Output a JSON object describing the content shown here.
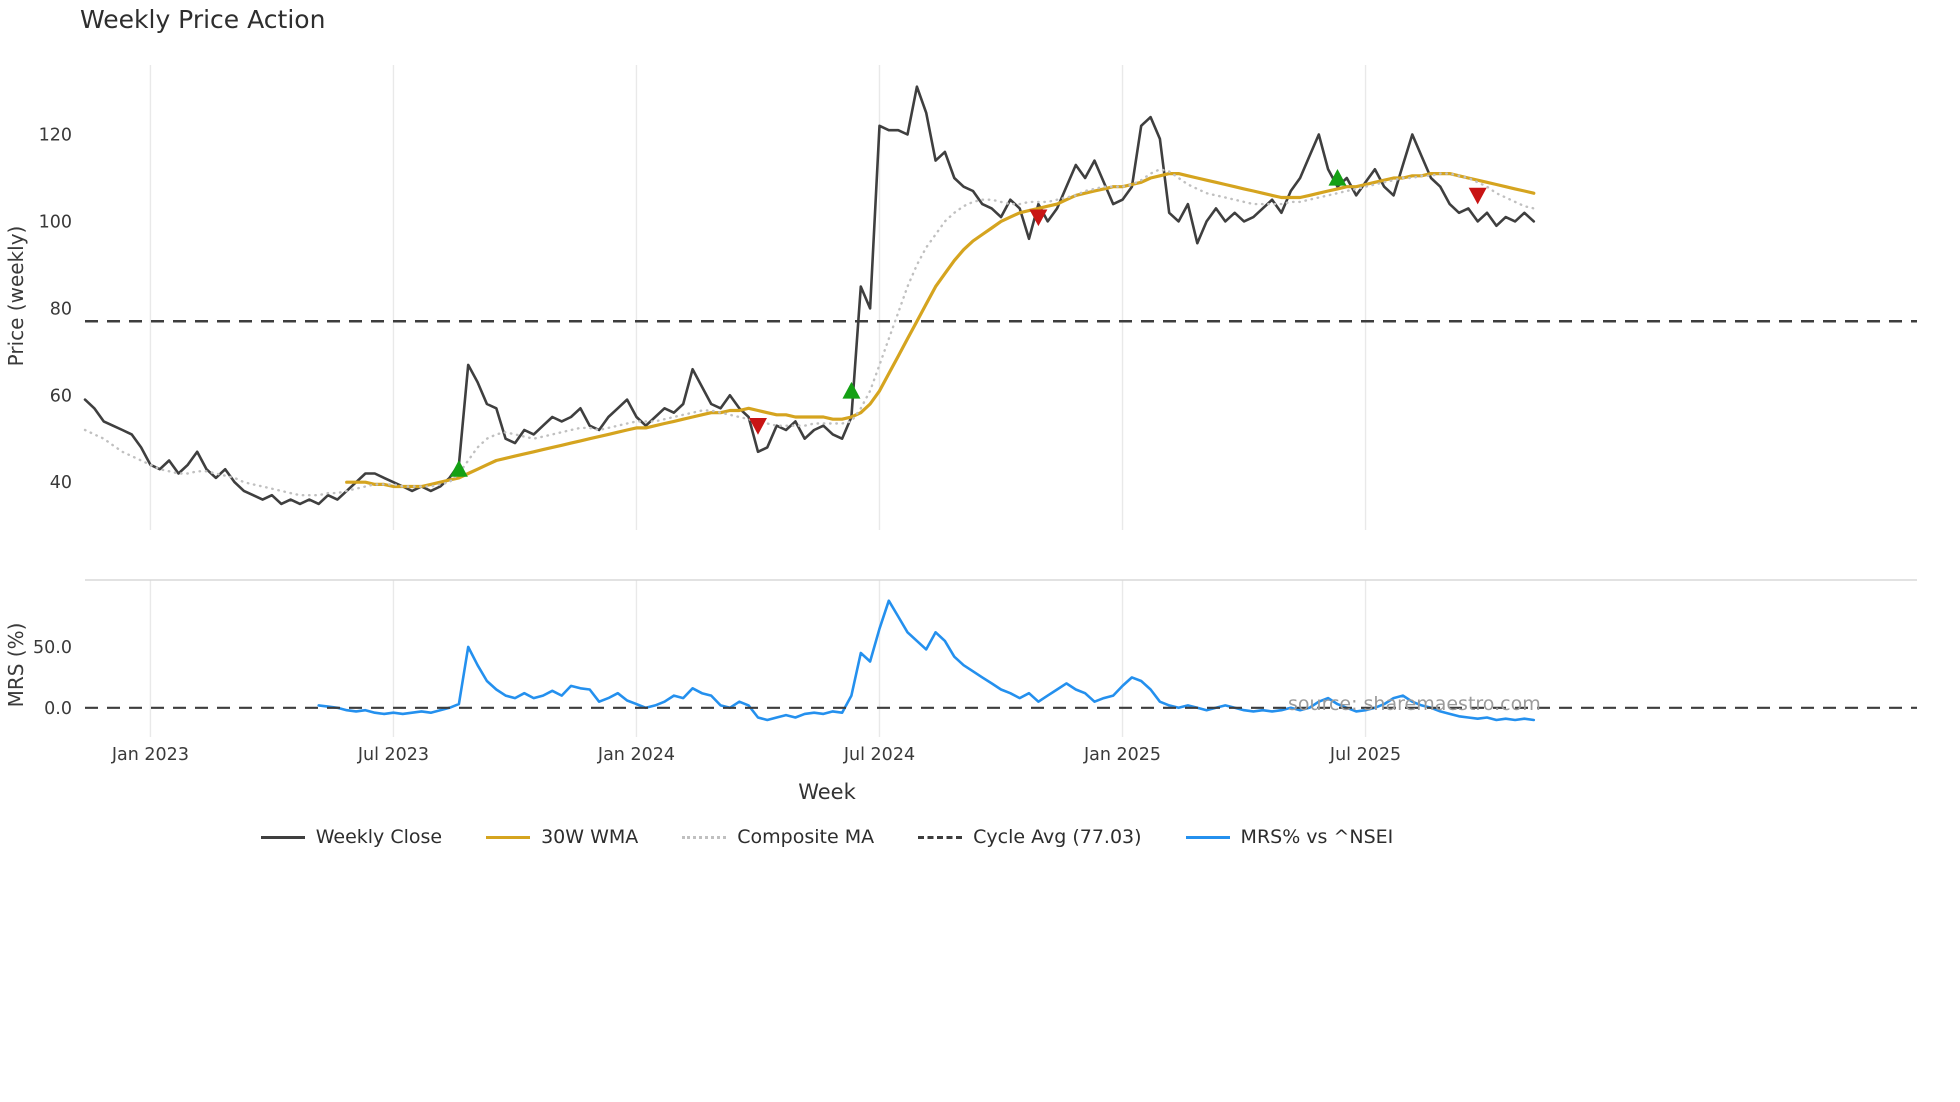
{
  "chart_data": {
    "type": "line",
    "title": "Weekly Price Action",
    "xlabel": "Week",
    "watermark": "source: sharemaestro.com",
    "x_unit": "week_index",
    "x_range": [
      0,
      196
    ],
    "x_ticks": [
      {
        "week": 7,
        "label": "Jan 2023"
      },
      {
        "week": 33,
        "label": "Jul 2023"
      },
      {
        "week": 59,
        "label": "Jan 2024"
      },
      {
        "week": 85,
        "label": "Jul 2024"
      },
      {
        "week": 111,
        "label": "Jan 2025"
      },
      {
        "week": 137,
        "label": "Jul 2025"
      }
    ],
    "panels": [
      {
        "name": "price",
        "ylabel": "Price (weekly)",
        "ylim": [
          29,
          136
        ],
        "grid": "vertical",
        "y_ticks": [
          {
            "value": 40,
            "label": "40"
          },
          {
            "value": 60,
            "label": "60"
          },
          {
            "value": 80,
            "label": "80"
          },
          {
            "value": 100,
            "label": "100"
          },
          {
            "value": 120,
            "label": "120"
          }
        ],
        "series": [
          {
            "name": "Weekly Close",
            "color": "#3f3f3f",
            "width": 2.6,
            "dash": "solid",
            "start_week": 0,
            "values": [
              59,
              57,
              54,
              53,
              52,
              51,
              48,
              44,
              43,
              45,
              42,
              44,
              47,
              43,
              41,
              43,
              40,
              38,
              37,
              36,
              37,
              35,
              36,
              35,
              36,
              35,
              37,
              36,
              38,
              40,
              42,
              42,
              41,
              40,
              39,
              38,
              39,
              38,
              39,
              41,
              44,
              67,
              63,
              58,
              57,
              50,
              49,
              52,
              51,
              53,
              55,
              54,
              55,
              57,
              53,
              52,
              55,
              57,
              59,
              55,
              53,
              55,
              57,
              56,
              58,
              66,
              62,
              58,
              57,
              60,
              57,
              55,
              47,
              48,
              53,
              52,
              54,
              50,
              52,
              53,
              51,
              50,
              55,
              85,
              80,
              122,
              121,
              121,
              120,
              131,
              125,
              114,
              116,
              110,
              108,
              107,
              104,
              103,
              101,
              105,
              103,
              96,
              104,
              100,
              103,
              108,
              113,
              110,
              114,
              109,
              104,
              105,
              108,
              122,
              124,
              119,
              102,
              100,
              104,
              95,
              100,
              103,
              100,
              102,
              100,
              101,
              103,
              105,
              102,
              107,
              110,
              115,
              120,
              112,
              108,
              110,
              106,
              109,
              112,
              108,
              106,
              113,
              120,
              115,
              110,
              108,
              104,
              102,
              103,
              100,
              102,
              99,
              101,
              100,
              102,
              100
            ]
          },
          {
            "name": "30W WMA",
            "color": "#d5a41f",
            "width": 3.2,
            "dash": "solid",
            "start_week": 28,
            "values": [
              40,
              40,
              40,
              39.5,
              39.5,
              39,
              39,
              39,
              39,
              39.5,
              40,
              40.5,
              41,
              42,
              43,
              44,
              45,
              45.5,
              46,
              46.5,
              47,
              47.5,
              48,
              48.5,
              49,
              49.5,
              50,
              50.5,
              51,
              51.5,
              52,
              52.5,
              52.5,
              53,
              53.5,
              54,
              54.5,
              55,
              55.5,
              56,
              56,
              56.5,
              56.5,
              57,
              56.5,
              56,
              55.5,
              55.5,
              55,
              55,
              55,
              55,
              54.5,
              54.5,
              55,
              56,
              58,
              61,
              65,
              69,
              73,
              77,
              81,
              85,
              88,
              91,
              93.5,
              95.5,
              97,
              98.5,
              100,
              101,
              102,
              102.5,
              103,
              103.5,
              104,
              105,
              106,
              106.5,
              107,
              107.5,
              108,
              108,
              108.5,
              109,
              110,
              110.5,
              111,
              111,
              110.5,
              110,
              109.5,
              109,
              108.5,
              108,
              107.5,
              107,
              106.5,
              106,
              105.5,
              105.5,
              105.5,
              106,
              106.5,
              107,
              107.5,
              108,
              108,
              108.5,
              109,
              109.5,
              110,
              110,
              110.5,
              110.5,
              111,
              111,
              111,
              110.5,
              110,
              109.5,
              109,
              108.5,
              108,
              107.5,
              107,
              106.5
            ]
          },
          {
            "name": "Composite MA",
            "color": "#c0c0c0",
            "width": 2.4,
            "dash": "dotted",
            "start_week": 0,
            "values": [
              52,
              51,
              50,
              48.5,
              47,
              46,
              45,
              44,
              43,
              42.5,
              42,
              42,
              42.5,
              42.5,
              42,
              41.5,
              41,
              40,
              39.5,
              39,
              38.5,
              38,
              37.5,
              37,
              37,
              37,
              37.5,
              37.5,
              38,
              38.5,
              39,
              39.5,
              39.5,
              39.5,
              39,
              39,
              39,
              39,
              39.5,
              40,
              42,
              45,
              48,
              50,
              51,
              51.5,
              51,
              50.5,
              50,
              50.5,
              51,
              51.5,
              52,
              52.5,
              52.5,
              52,
              52.5,
              53,
              53.5,
              54,
              54,
              54,
              54.5,
              55,
              55.5,
              56,
              56.5,
              56.5,
              56,
              55.5,
              55,
              54.5,
              54,
              53.5,
              53,
              53,
              53,
              53,
              53.5,
              53.5,
              53.5,
              53.5,
              54,
              57,
              61,
              67,
              73,
              79,
              85,
              90,
              94,
              97,
              100,
              102,
              103.5,
              104.5,
              105,
              105,
              104.5,
              104,
              104,
              104.5,
              104.5,
              104.5,
              105,
              105.5,
              106,
              107,
              107.5,
              108,
              108,
              108,
              108.5,
              109.5,
              111,
              112,
              111.5,
              110,
              108.5,
              107.5,
              106.5,
              106,
              105.5,
              105,
              104.5,
              104,
              104,
              104,
              104,
              104.5,
              104.5,
              105,
              105.5,
              106,
              106.5,
              107,
              107.5,
              108,
              108.5,
              109,
              109.5,
              110,
              110,
              110.5,
              110.5,
              111,
              111,
              110.5,
              110,
              109,
              108,
              106.5,
              105.5,
              104.5,
              103.5,
              103
            ]
          },
          {
            "name": "Cycle Avg",
            "type": "hline",
            "value": 77.03,
            "color": "#3d3d3d",
            "width": 2.5,
            "dash": "dashed"
          }
        ],
        "markers": {
          "buy": {
            "shape": "triangle-up",
            "color": "#14a014",
            "points": [
              {
                "week": 40,
                "value": 43
              },
              {
                "week": 82,
                "value": 61
              },
              {
                "week": 134,
                "value": 110
              }
            ]
          },
          "sell": {
            "shape": "triangle-down",
            "color": "#c81414",
            "points": [
              {
                "week": 72,
                "value": 53
              },
              {
                "week": 102,
                "value": 101
              },
              {
                "week": 149,
                "value": 106
              }
            ]
          }
        }
      },
      {
        "name": "mrs",
        "ylabel": "MRS (%)",
        "ylim": [
          -24,
          105
        ],
        "grid": "vertical",
        "top_border": true,
        "y_ticks": [
          {
            "value": 50,
            "label": "50.0"
          },
          {
            "value": 0,
            "label": "0.0"
          }
        ],
        "series": [
          {
            "name": "MRS% vs ^NSEI",
            "color": "#2490ee",
            "width": 2.6,
            "dash": "solid",
            "start_week": 25,
            "values": [
              2,
              1,
              0,
              -2,
              -3,
              -2,
              -4,
              -5,
              -4,
              -5,
              -4,
              -3,
              -4,
              -2,
              0,
              3,
              50,
              35,
              22,
              15,
              10,
              8,
              12,
              8,
              10,
              14,
              10,
              18,
              16,
              15,
              5,
              8,
              12,
              6,
              3,
              0,
              2,
              5,
              10,
              8,
              16,
              12,
              10,
              2,
              0,
              5,
              2,
              -8,
              -10,
              -8,
              -6,
              -8,
              -5,
              -4,
              -5,
              -3,
              -4,
              10,
              45,
              38,
              65,
              88,
              75,
              62,
              55,
              48,
              62,
              55,
              42,
              35,
              30,
              25,
              20,
              15,
              12,
              8,
              12,
              5,
              10,
              15,
              20,
              15,
              12,
              5,
              8,
              10,
              18,
              25,
              22,
              15,
              5,
              2,
              0,
              2,
              0,
              -2,
              0,
              2,
              0,
              -2,
              -3,
              -2,
              -3,
              -2,
              0,
              -2,
              0,
              5,
              8,
              3,
              0,
              -3,
              -2,
              0,
              3,
              8,
              10,
              5,
              2,
              0,
              -3,
              -5,
              -7,
              -8,
              -9,
              -8,
              -10,
              -9,
              -10,
              -9,
              -10
            ]
          },
          {
            "name": "zero-line",
            "type": "hline",
            "value": 0,
            "color": "#3d3d3d",
            "width": 2.2,
            "dash": "dashed"
          }
        ]
      }
    ],
    "legend": [
      {
        "label": "Weekly Close",
        "color": "#3f3f3f",
        "style": "solid"
      },
      {
        "label": "30W WMA",
        "color": "#d5a41f",
        "style": "solid"
      },
      {
        "label": "Composite MA",
        "color": "#c0c0c0",
        "style": "dotted"
      },
      {
        "label": "Cycle Avg (77.03)",
        "color": "#3d3d3d",
        "style": "dashed"
      },
      {
        "label": "MRS% vs ^NSEI",
        "color": "#2490ee",
        "style": "solid"
      }
    ]
  }
}
